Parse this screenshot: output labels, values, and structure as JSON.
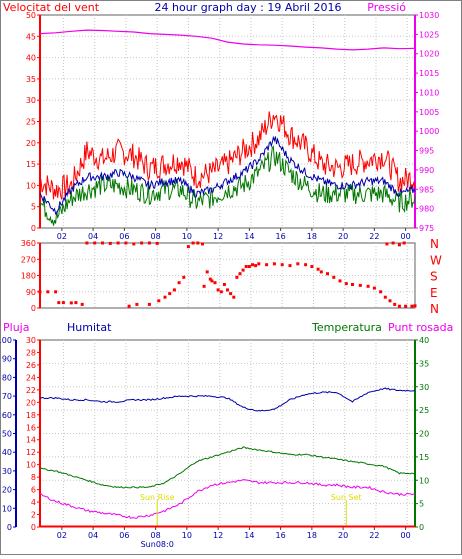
{
  "header": {
    "left_title": "Velocitat del vent",
    "center_title": "24 hour graph day : 19 Abril 2016",
    "right_title": "Pressió"
  },
  "colors": {
    "red": "#ff0000",
    "blue": "#0000aa",
    "green": "#007700",
    "magenta": "#ee00ee",
    "yellow": "#dddd00",
    "grid": "#c8c8c8",
    "frame": "#606060"
  },
  "chart_data": [
    {
      "type": "line",
      "panel": "wind_and_pressure",
      "x_ticks": [
        "02",
        "04",
        "06",
        "08",
        "10",
        "12",
        "14",
        "16",
        "18",
        "20",
        "22",
        "00"
      ],
      "left_axis": {
        "label": "Velocitat del vent",
        "ylim": [
          0,
          50
        ],
        "ticks": [
          "0",
          "5",
          "10",
          "15",
          "20",
          "25",
          "30",
          "35",
          "40",
          "45",
          "50"
        ]
      },
      "right_axis": {
        "label": "Pressió",
        "ylim": [
          975,
          1030
        ],
        "ticks": [
          "975",
          "980",
          "985",
          "990",
          "995",
          "1000",
          "1005",
          "1010",
          "1015",
          "1020",
          "1025",
          "1030"
        ]
      },
      "hours": [
        0,
        1,
        2,
        3,
        4,
        5,
        6,
        7,
        8,
        9,
        10,
        11,
        12,
        13,
        14,
        15,
        16,
        17,
        18,
        19,
        20,
        21,
        22,
        23,
        24
      ],
      "series": [
        {
          "name": "gust",
          "axis": "left",
          "values": [
            11,
            9,
            10,
            18,
            16,
            18,
            17,
            14,
            15,
            16,
            12,
            13,
            15,
            18,
            21,
            27,
            22,
            19,
            15,
            14,
            15,
            16,
            17,
            11,
            12
          ]
        },
        {
          "name": "average",
          "axis": "left",
          "values": [
            8,
            4,
            9,
            12,
            12,
            13,
            12,
            10,
            11,
            11,
            8,
            9,
            11,
            13,
            16,
            21,
            16,
            13,
            11,
            10,
            10,
            11,
            11,
            8,
            9
          ]
        },
        {
          "name": "wind",
          "axis": "left",
          "values": [
            6,
            2,
            7,
            9,
            10,
            10,
            9,
            8,
            9,
            9,
            6,
            7,
            9,
            10,
            13,
            17,
            13,
            10,
            8,
            8,
            8,
            8,
            8,
            6,
            7
          ]
        },
        {
          "name": "pressure",
          "axis": "right",
          "values": [
            1025.2,
            1025.4,
            1025.8,
            1026.1,
            1026,
            1025.8,
            1025.6,
            1025.2,
            1025,
            1024.8,
            1024.5,
            1024,
            1023,
            1022.5,
            1022.3,
            1022.2,
            1022,
            1021.7,
            1021.5,
            1021.2,
            1021,
            1021.2,
            1021.5,
            1021.3,
            1021.4
          ]
        }
      ]
    },
    {
      "type": "scatter",
      "panel": "wind_direction",
      "x_ticks": [
        "02",
        "04",
        "06",
        "08",
        "10",
        "12",
        "14",
        "16",
        "18",
        "20",
        "22",
        "00"
      ],
      "left_axis": {
        "ylim": [
          0,
          360
        ],
        "ticks": [
          "0",
          "90",
          "180",
          "270",
          "360"
        ]
      },
      "right_labels": [
        "N",
        "W",
        "S",
        "E",
        "N"
      ],
      "series": [
        {
          "name": "direction",
          "points": [
            [
              0,
              90
            ],
            [
              0.5,
              90
            ],
            [
              1,
              90
            ],
            [
              1.2,
              30
            ],
            [
              1.5,
              30
            ],
            [
              2,
              28
            ],
            [
              2.3,
              30
            ],
            [
              2.7,
              20
            ],
            [
              3,
              360
            ],
            [
              3.5,
              360
            ],
            [
              4,
              360
            ],
            [
              4.5,
              358
            ],
            [
              5,
              360
            ],
            [
              5.5,
              360
            ],
            [
              6,
              355
            ],
            [
              6.5,
              360
            ],
            [
              7,
              360
            ],
            [
              7.5,
              358
            ],
            [
              5.7,
              10
            ],
            [
              6.2,
              20
            ],
            [
              7,
              20
            ],
            [
              7.6,
              40
            ],
            [
              8,
              60
            ],
            [
              8.3,
              80
            ],
            [
              8.6,
              100
            ],
            [
              8.9,
              140
            ],
            [
              9.2,
              170
            ],
            [
              9.5,
              340
            ],
            [
              9.8,
              360
            ],
            [
              10.1,
              360
            ],
            [
              10.4,
              355
            ],
            [
              10.5,
              120
            ],
            [
              10.7,
              200
            ],
            [
              10.9,
              160
            ],
            [
              11,
              150
            ],
            [
              11.2,
              140
            ],
            [
              11.4,
              100
            ],
            [
              11.6,
              90
            ],
            [
              11.8,
              130
            ],
            [
              12,
              100
            ],
            [
              12.2,
              80
            ],
            [
              12.4,
              60
            ],
            [
              12.6,
              170
            ],
            [
              12.8,
              190
            ],
            [
              13,
              210
            ],
            [
              13.2,
              230
            ],
            [
              13.4,
              230
            ],
            [
              13.6,
              240
            ],
            [
              13.8,
              235
            ],
            [
              14,
              245
            ],
            [
              14.5,
              240
            ],
            [
              15,
              245
            ],
            [
              15.5,
              240
            ],
            [
              16,
              235
            ],
            [
              16.5,
              245
            ],
            [
              17,
              240
            ],
            [
              17.4,
              230
            ],
            [
              17.8,
              215
            ],
            [
              18,
              200
            ],
            [
              18.4,
              190
            ],
            [
              18.8,
              170
            ],
            [
              19.2,
              150
            ],
            [
              19.6,
              135
            ],
            [
              20,
              130
            ],
            [
              20.5,
              125
            ],
            [
              21,
              120
            ],
            [
              21.4,
              110
            ],
            [
              21.8,
              90
            ],
            [
              22.1,
              60
            ],
            [
              22.4,
              40
            ],
            [
              22.7,
              20
            ],
            [
              23,
              10
            ],
            [
              23.4,
              10
            ],
            [
              23.8,
              10
            ],
            [
              24,
              12
            ],
            [
              22.2,
              355
            ],
            [
              22.6,
              360
            ],
            [
              23,
              350
            ],
            [
              23.3,
              360
            ]
          ]
        }
      ]
    },
    {
      "type": "line",
      "panel": "humidity_temperature",
      "x_ticks": [
        "02",
        "04",
        "06",
        "08",
        "10",
        "12",
        "14",
        "16",
        "18",
        "20",
        "22",
        "00"
      ],
      "x_annotations": [
        {
          "hour": 7.5,
          "label": "Sun08:0"
        },
        {
          "hour": 19.3,
          "label": ""
        }
      ],
      "titles": {
        "left": "Pluja",
        "humidity": "Humitat",
        "temperature": "Temperatura",
        "dewpoint": "Punt rosada"
      },
      "humidity_axis": {
        "ylim": [
          0,
          100
        ],
        "ticks": [
          "0",
          "10",
          "20",
          "30",
          "40",
          "50",
          "60",
          "70",
          "80",
          "90",
          "100"
        ]
      },
      "rain_axis": {
        "ylim": [
          0,
          30
        ],
        "ticks": [
          "0",
          "2",
          "4",
          "6",
          "8",
          "10",
          "12",
          "14",
          "16",
          "18",
          "20",
          "22",
          "24",
          "26",
          "28",
          "30"
        ]
      },
      "temperature_axis": {
        "ylim": [
          0,
          40
        ],
        "ticks": [
          "0",
          "5",
          "10",
          "15",
          "20",
          "25",
          "30",
          "35",
          "40"
        ]
      },
      "annotations": [
        {
          "hour": 7.5,
          "label": "Sun Rise"
        },
        {
          "hour": 19.6,
          "label": "Sun Set"
        }
      ],
      "hours": [
        0,
        1,
        2,
        3,
        4,
        5,
        6,
        7,
        8,
        9,
        10,
        11,
        12,
        13,
        14,
        15,
        16,
        17,
        18,
        19,
        20,
        21,
        22,
        23,
        24
      ],
      "series": [
        {
          "name": "humidity",
          "axis": "humidity",
          "values": [
            69,
            69,
            68,
            68,
            67,
            67,
            68,
            68,
            69,
            70,
            70,
            70,
            69,
            64,
            62,
            63,
            68,
            71,
            72,
            72,
            67,
            72,
            74,
            73,
            73
          ]
        },
        {
          "name": "temperature",
          "axis": "temperature",
          "values": [
            12.5,
            12,
            11,
            10,
            9,
            8.5,
            8.5,
            8.5,
            9.5,
            11.5,
            14,
            15,
            16,
            17,
            16.5,
            16,
            15.5,
            15.5,
            15,
            14.5,
            14,
            13.5,
            13,
            11.5,
            11.5
          ]
        },
        {
          "name": "dewpoint",
          "axis": "temperature",
          "values": [
            7,
            5.5,
            4.5,
            3.5,
            3,
            2.5,
            2,
            2.5,
            3.5,
            5,
            7.5,
            9,
            9.5,
            10,
            9.5,
            9.5,
            9.5,
            9.5,
            9,
            9,
            8.5,
            8.5,
            7.5,
            7,
            7
          ]
        },
        {
          "name": "rain",
          "axis": "rain",
          "values": [
            0,
            0,
            0,
            0,
            0,
            0,
            0,
            0,
            0,
            0,
            0,
            0,
            0,
            0,
            0,
            0,
            0,
            0,
            0,
            0,
            0,
            0,
            0,
            0,
            0
          ]
        }
      ]
    }
  ]
}
